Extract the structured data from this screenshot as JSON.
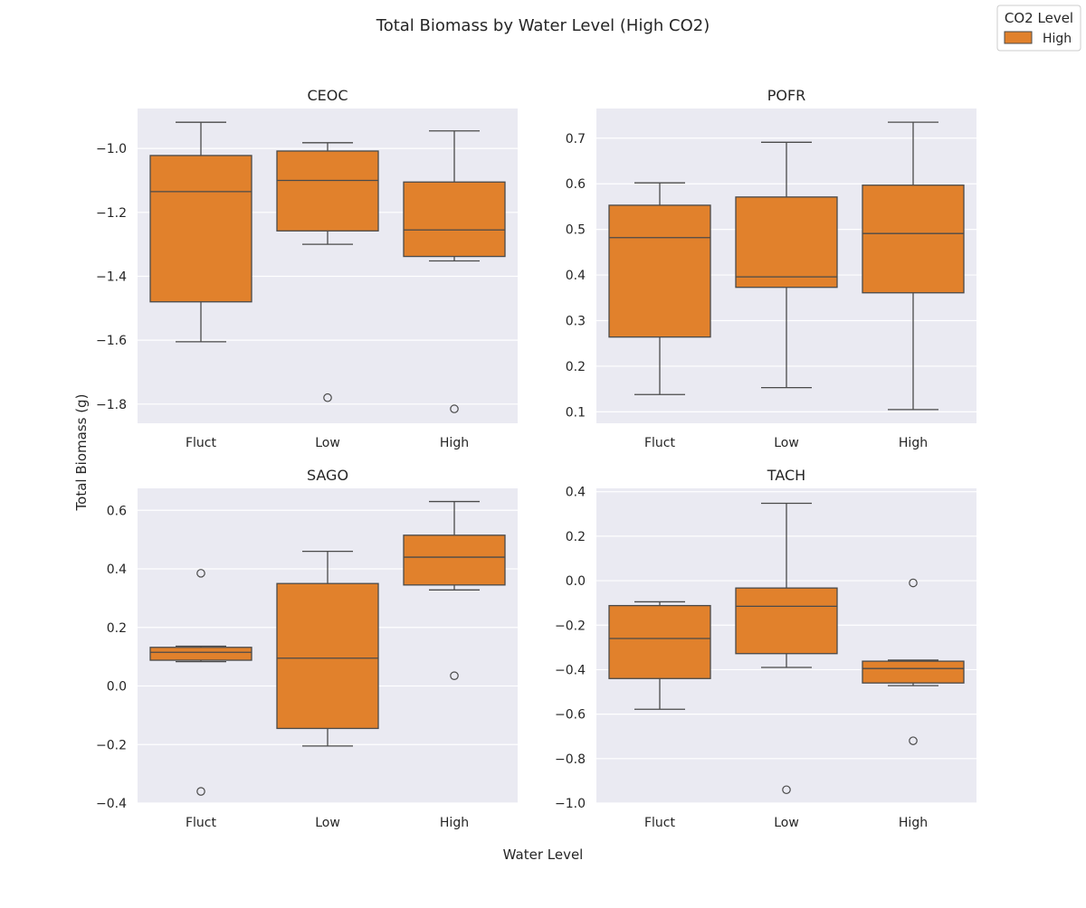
{
  "figure": {
    "title": "Total Biomass by Water Level (High CO2)",
    "xlabel": "Water Level",
    "ylabel": "Total Biomass (g)"
  },
  "legend": {
    "title": "CO2 Level",
    "entries": [
      {
        "label": "High",
        "color": "#e1812c"
      }
    ],
    "placement": "top-right"
  },
  "colors": {
    "box_fill": "#e1812c",
    "line": "#4a4a4a",
    "panel_bg": "#eaeaf2",
    "grid": "#ffffff"
  },
  "chart_data": [
    {
      "type": "box",
      "title": "CEOC",
      "categories": [
        "Fluct",
        "Low",
        "High"
      ],
      "ylim": [
        -1.86,
        -0.875
      ],
      "yticks": [
        -1.8,
        -1.6,
        -1.4,
        -1.2,
        -1.0
      ],
      "ytick_labels": [
        "−1.8",
        "−1.6",
        "−1.4",
        "−1.2",
        "−1.0"
      ],
      "grid": true,
      "boxes": [
        {
          "whislo": -1.605,
          "q1": -1.48,
          "med": -1.135,
          "q3": -1.022,
          "whishi": -0.918,
          "fliers": []
        },
        {
          "whislo": -1.3,
          "q1": -1.258,
          "med": -1.1,
          "q3": -1.008,
          "whishi": -0.982,
          "fliers": [
            -1.78
          ]
        },
        {
          "whislo": -1.352,
          "q1": -1.338,
          "med": -1.255,
          "q3": -1.105,
          "whishi": -0.945,
          "fliers": [
            -1.815
          ]
        }
      ]
    },
    {
      "type": "box",
      "title": "POFR",
      "categories": [
        "Fluct",
        "Low",
        "High"
      ],
      "ylim": [
        0.075,
        0.765
      ],
      "yticks": [
        0.1,
        0.2,
        0.3,
        0.4,
        0.5,
        0.6,
        0.7
      ],
      "ytick_labels": [
        "0.1",
        "0.2",
        "0.3",
        "0.4",
        "0.5",
        "0.6",
        "0.7"
      ],
      "grid": true,
      "boxes": [
        {
          "whislo": 0.138,
          "q1": 0.264,
          "med": 0.482,
          "q3": 0.553,
          "whishi": 0.602,
          "fliers": []
        },
        {
          "whislo": 0.153,
          "q1": 0.373,
          "med": 0.396,
          "q3": 0.571,
          "whishi": 0.691,
          "fliers": []
        },
        {
          "whislo": 0.105,
          "q1": 0.361,
          "med": 0.491,
          "q3": 0.597,
          "whishi": 0.735,
          "fliers": []
        }
      ]
    },
    {
      "type": "box",
      "title": "SAGO",
      "categories": [
        "Fluct",
        "Low",
        "High"
      ],
      "ylim": [
        -0.4,
        0.675
      ],
      "yticks": [
        -0.4,
        -0.2,
        0.0,
        0.2,
        0.4,
        0.6
      ],
      "ytick_labels": [
        "−0.4",
        "−0.2",
        "0.0",
        "0.2",
        "0.4",
        "0.6"
      ],
      "grid": true,
      "boxes": [
        {
          "whislo": 0.083,
          "q1": 0.088,
          "med": 0.115,
          "q3": 0.132,
          "whishi": 0.136,
          "fliers": [
            0.385,
            -0.36
          ]
        },
        {
          "whislo": -0.205,
          "q1": -0.145,
          "med": 0.095,
          "q3": 0.35,
          "whishi": 0.46,
          "fliers": []
        },
        {
          "whislo": 0.328,
          "q1": 0.345,
          "med": 0.44,
          "q3": 0.515,
          "whishi": 0.63,
          "fliers": [
            0.035
          ]
        }
      ]
    },
    {
      "type": "box",
      "title": "TACH",
      "categories": [
        "Fluct",
        "Low",
        "High"
      ],
      "ylim": [
        -1.0,
        0.415
      ],
      "yticks": [
        -1.0,
        -0.8,
        -0.6,
        -0.4,
        -0.2,
        0.0,
        0.2,
        0.4
      ],
      "ytick_labels": [
        "−1.0",
        "−0.8",
        "−0.6",
        "−0.4",
        "−0.2",
        "0.0",
        "0.2",
        "0.4"
      ],
      "grid": true,
      "boxes": [
        {
          "whislo": -0.578,
          "q1": -0.44,
          "med": -0.26,
          "q3": -0.112,
          "whishi": -0.095,
          "fliers": []
        },
        {
          "whislo": -0.39,
          "q1": -0.328,
          "med": -0.115,
          "q3": -0.033,
          "whishi": 0.348,
          "fliers": [
            -0.94
          ]
        },
        {
          "whislo": -0.472,
          "q1": -0.46,
          "med": -0.395,
          "q3": -0.362,
          "whishi": -0.357,
          "fliers": [
            -0.01,
            -0.72
          ]
        }
      ]
    }
  ]
}
